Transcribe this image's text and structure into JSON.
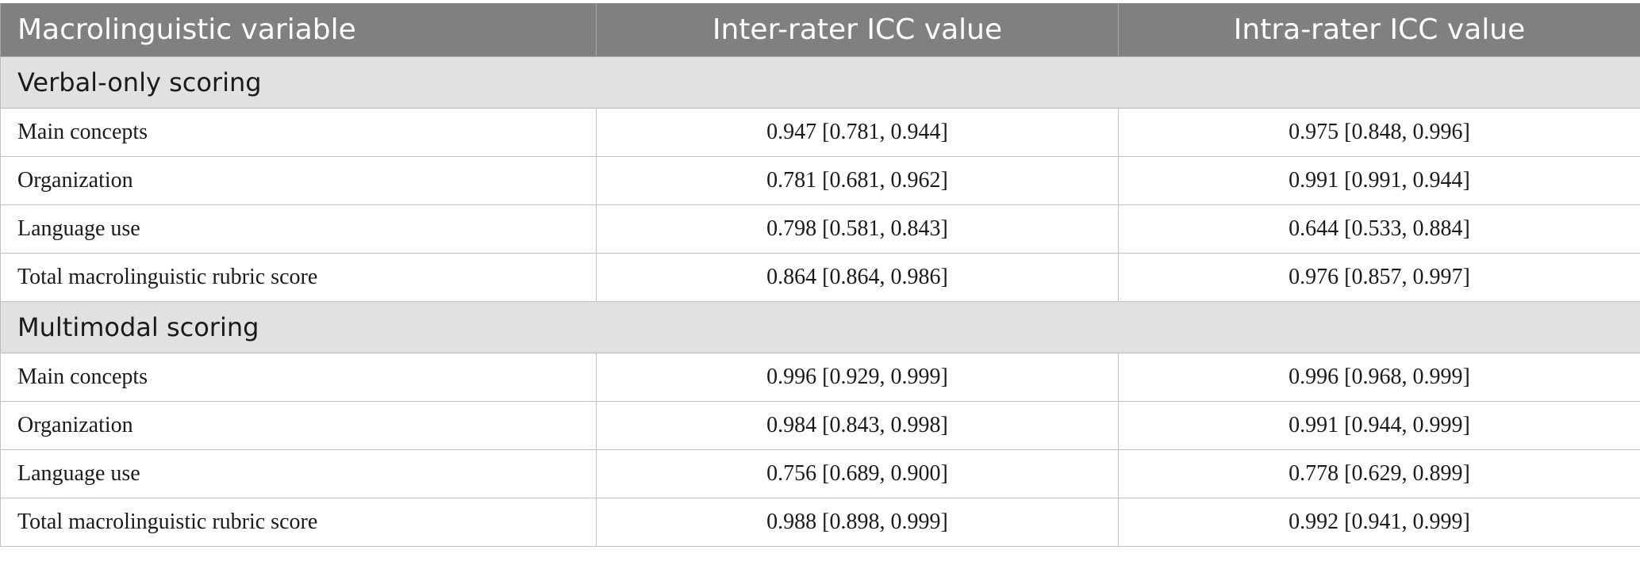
{
  "table": {
    "headers": [
      "Macrolinguistic variable",
      "Inter-rater ICC value",
      "Intra-rater ICC value"
    ],
    "sections": [
      {
        "title": "Verbal-only scoring",
        "rows": [
          {
            "variable": "Main concepts",
            "inter": "0.947 [0.781, 0.944]",
            "intra": "0.975 [0.848, 0.996]"
          },
          {
            "variable": "Organization",
            "inter": "0.781 [0.681, 0.962]",
            "intra": "0.991 [0.991, 0.944]"
          },
          {
            "variable": "Language use",
            "inter": "0.798 [0.581, 0.843]",
            "intra": "0.644 [0.533, 0.884]"
          },
          {
            "variable": "Total macrolinguistic rubric score",
            "inter": "0.864 [0.864, 0.986]",
            "intra": "0.976 [0.857, 0.997]"
          }
        ]
      },
      {
        "title": "Multimodal scoring",
        "rows": [
          {
            "variable": "Main concepts",
            "inter": "0.996 [0.929, 0.999]",
            "intra": "0.996 [0.968, 0.999]"
          },
          {
            "variable": "Organization",
            "inter": "0.984 [0.843, 0.998]",
            "intra": "0.991 [0.944, 0.999]"
          },
          {
            "variable": "Language use",
            "inter": "0.756 [0.689, 0.900]",
            "intra": "0.778 [0.629, 0.899]"
          },
          {
            "variable": "Total macrolinguistic rubric score",
            "inter": "0.988 [0.898, 0.999]",
            "intra": "0.992 [0.941, 0.999]"
          }
        ]
      }
    ]
  }
}
